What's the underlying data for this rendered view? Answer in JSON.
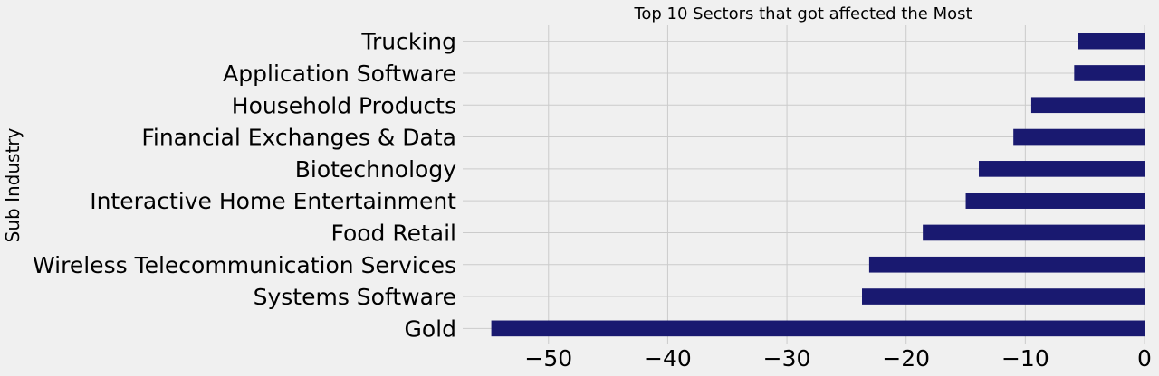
{
  "chart_data": {
    "type": "bar",
    "orientation": "horizontal",
    "title": "Top 10 Sectors that got affected the Most",
    "xlabel": "",
    "ylabel": "Sub Industry",
    "categories": [
      "Trucking",
      "Application Software",
      "Household Products",
      "Financial Exchanges & Data",
      "Biotechnology",
      "Interactive Home Entertainment",
      "Food Retail",
      "Wireless Telecommunication Services",
      "Systems Software",
      "Gold"
    ],
    "values": [
      -5.6,
      -5.9,
      -9.5,
      -11.0,
      -13.9,
      -15.0,
      -18.6,
      -23.1,
      -23.7,
      -54.8
    ],
    "xlim": [
      -57.2,
      0
    ],
    "xticks": [
      -50,
      -40,
      -30,
      -20,
      -10,
      0
    ],
    "xtick_labels": [
      "−50",
      "−40",
      "−30",
      "−20",
      "−10",
      "0"
    ],
    "grid": true,
    "bar_color": "#191970",
    "background_color": "#f0f0f0",
    "grid_color": "#cbcbcb"
  }
}
